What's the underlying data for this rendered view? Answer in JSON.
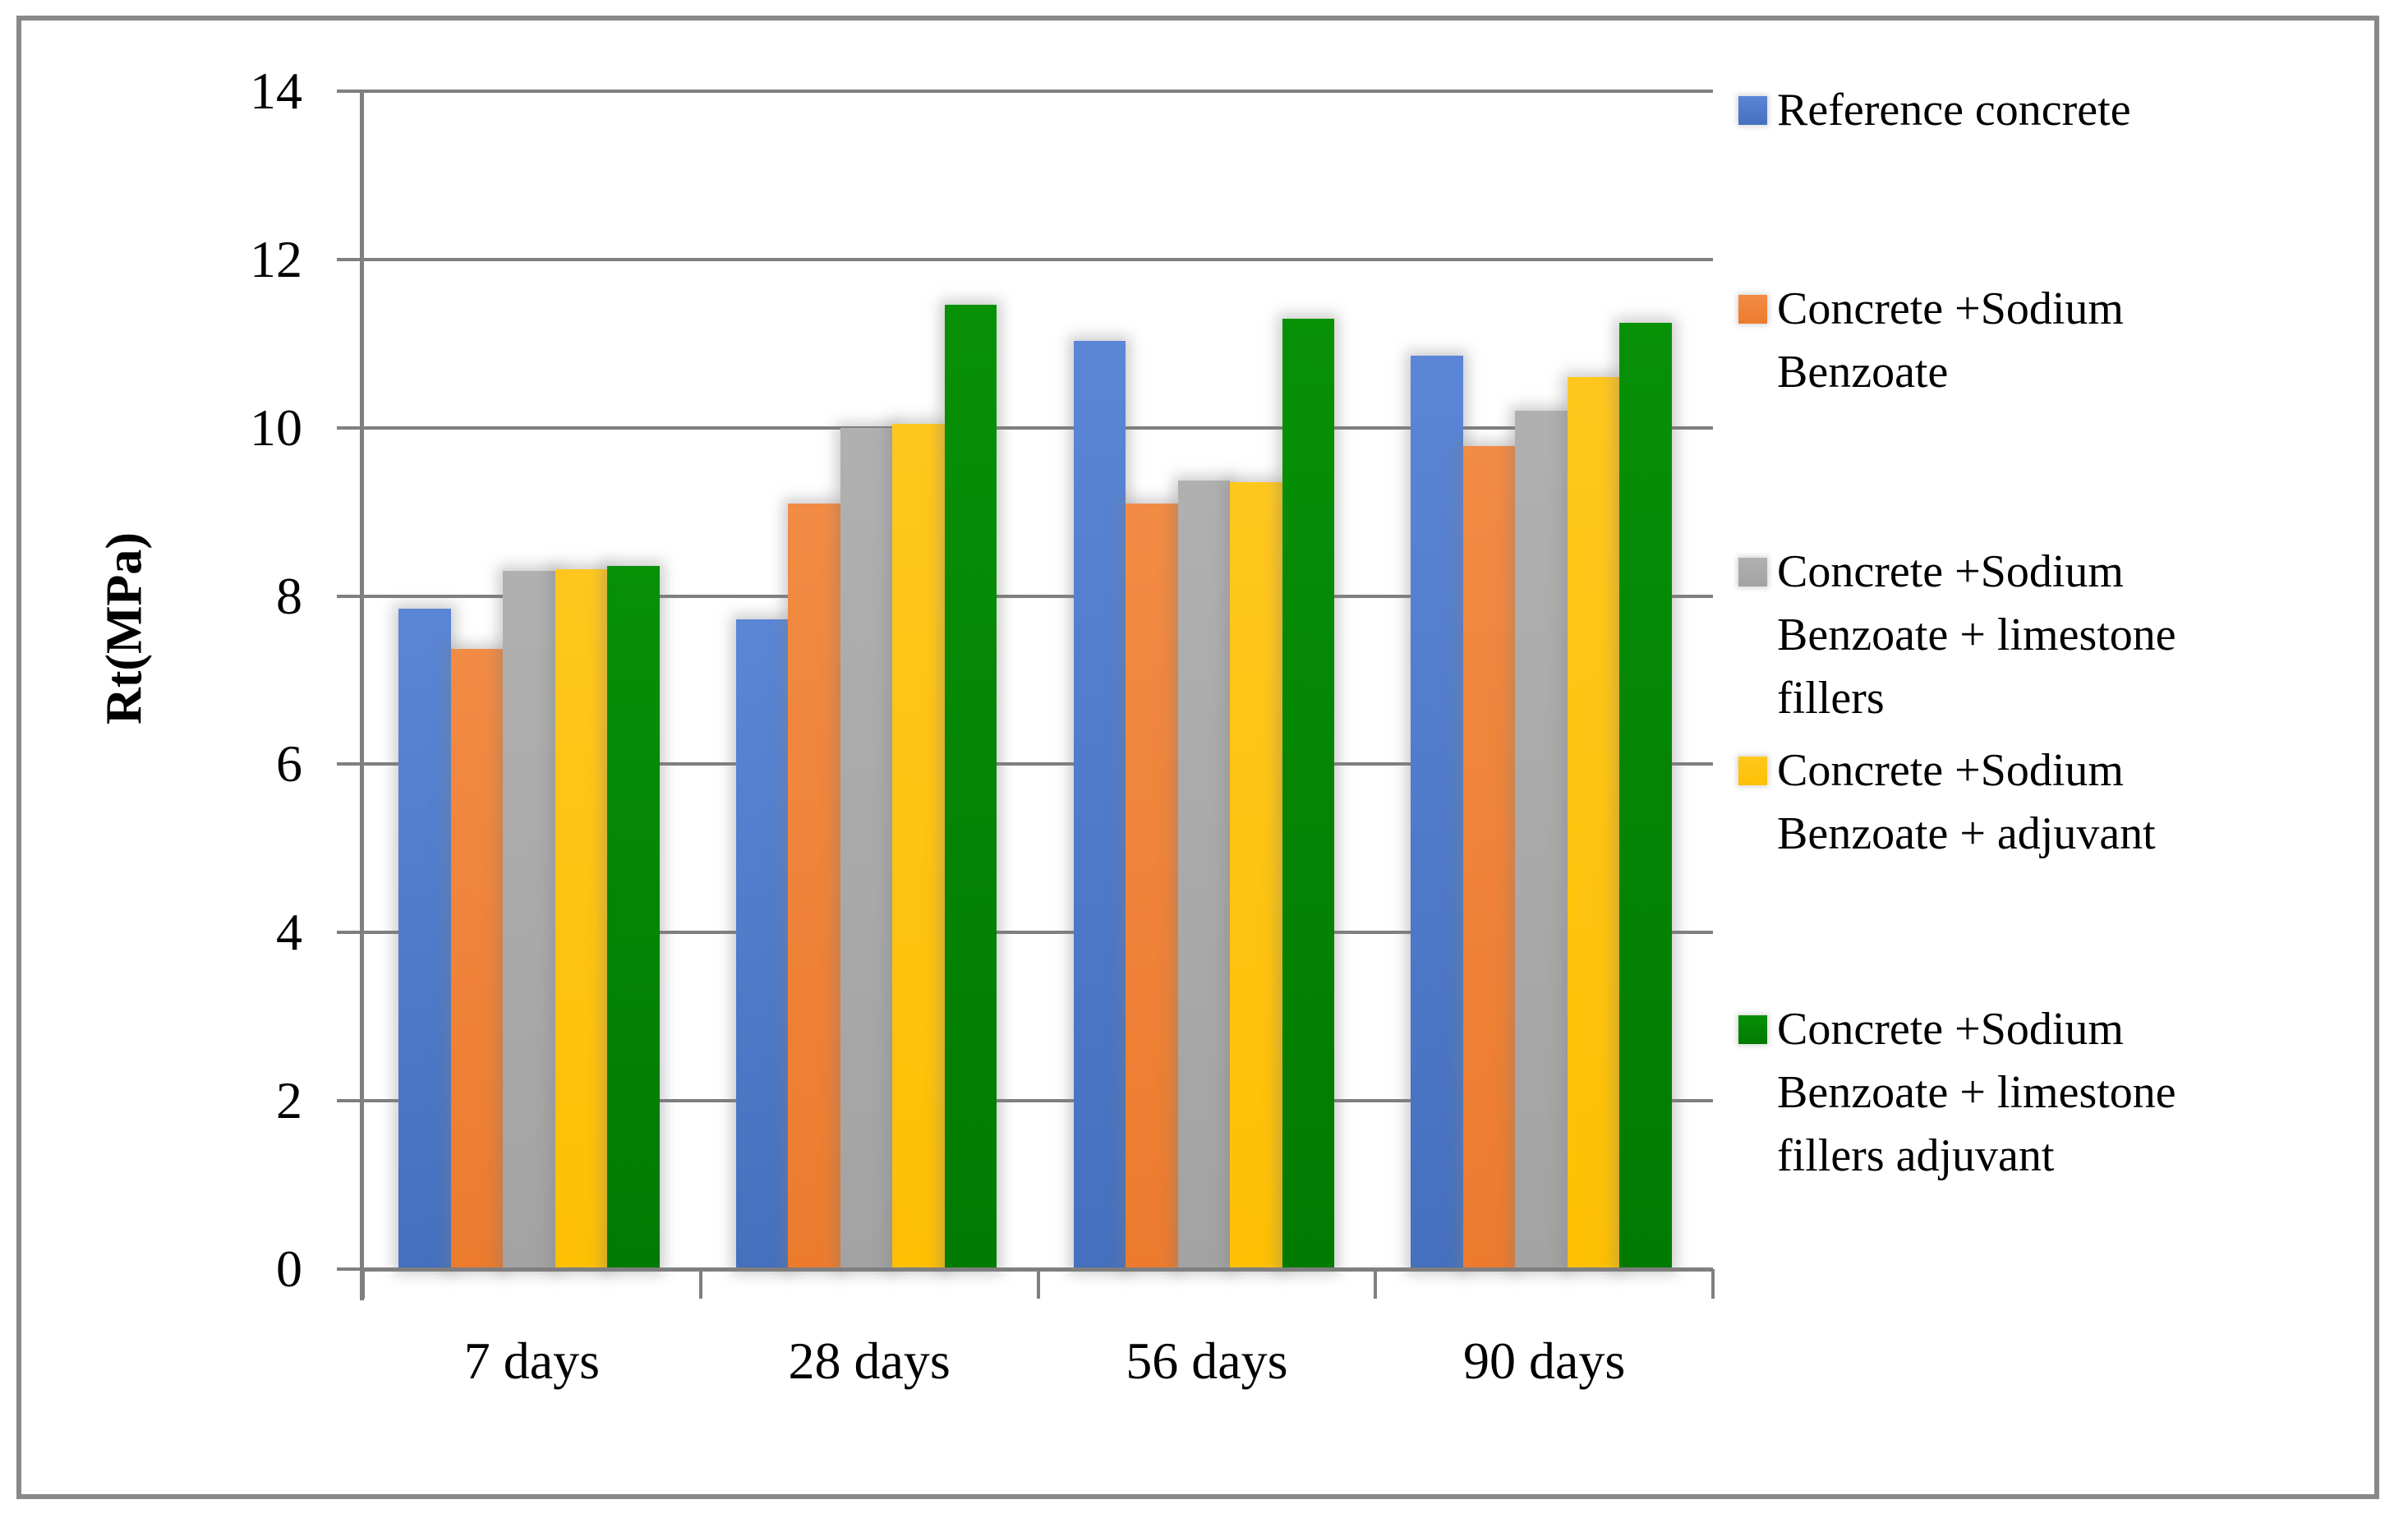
{
  "figure": {
    "background": "#ffffff",
    "border_color": "#898989",
    "grid_color": "#7f7f7f"
  },
  "chart_data": {
    "type": "bar",
    "title": "",
    "xlabel": "",
    "ylabel": "Rt(MPa)",
    "ylim": [
      0,
      14
    ],
    "yticks": [
      0,
      2,
      4,
      6,
      8,
      10,
      12,
      14
    ],
    "grid": true,
    "legend_position": "right",
    "categories": [
      "7 days",
      "28 days",
      "56 days",
      "90 days"
    ],
    "series": [
      {
        "key": "reference-concrete",
        "name": "Reference concrete",
        "color": "#4472C4",
        "fill_top": "#5b86d6",
        "fill_bottom": "#4470be",
        "values": [
          7.85,
          7.72,
          11.03,
          10.86
        ]
      },
      {
        "key": "sodium-benzoate",
        "name": "Concrete +Sodium Benzoate",
        "color": "#ED7D31",
        "fill_top": "#f28b44",
        "fill_bottom": "#ec7b2e",
        "values": [
          7.37,
          9.1,
          9.1,
          9.78
        ]
      },
      {
        "key": "sodium-benzoate-limestone-fillers",
        "name": "Concrete +Sodium Benzoate + limestone fillers",
        "color": "#A6A6A6",
        "fill_top": "#b0b0b0",
        "fill_bottom": "#a3a3a3",
        "values": [
          8.3,
          10.0,
          9.37,
          10.2
        ]
      },
      {
        "key": "sodium-benzoate-adjuvant",
        "name": "Concrete +Sodium Benzoate + adjuvant",
        "color": "#FFC000",
        "fill_top": "#ffc71e",
        "fill_bottom": "#fdc003",
        "values": [
          8.32,
          10.05,
          9.35,
          10.6
        ]
      },
      {
        "key": "sodium-benzoate-limestone-fillers-adjuvant",
        "name": "Concrete +Sodium Benzoate + limestone fillers adjuvant",
        "color": "#028102",
        "fill_top": "#079107",
        "fill_bottom": "#017a01",
        "values": [
          8.36,
          11.46,
          11.3,
          11.25
        ]
      }
    ]
  },
  "legend": {
    "items": [
      {
        "series_index": 0,
        "lines": [
          "Reference concrete"
        ]
      },
      {
        "series_index": 1,
        "lines": [
          "Concrete +Sodium",
          "Benzoate"
        ]
      },
      {
        "series_index": 2,
        "lines": [
          "Concrete +Sodium",
          "Benzoate + limestone",
          "fillers"
        ]
      },
      {
        "series_index": 3,
        "lines": [
          "Concrete +Sodium",
          "Benzoate + adjuvant"
        ]
      },
      {
        "series_index": 4,
        "lines": [
          "Concrete +Sodium",
          "Benzoate + limestone",
          "fillers adjuvant"
        ]
      }
    ]
  }
}
